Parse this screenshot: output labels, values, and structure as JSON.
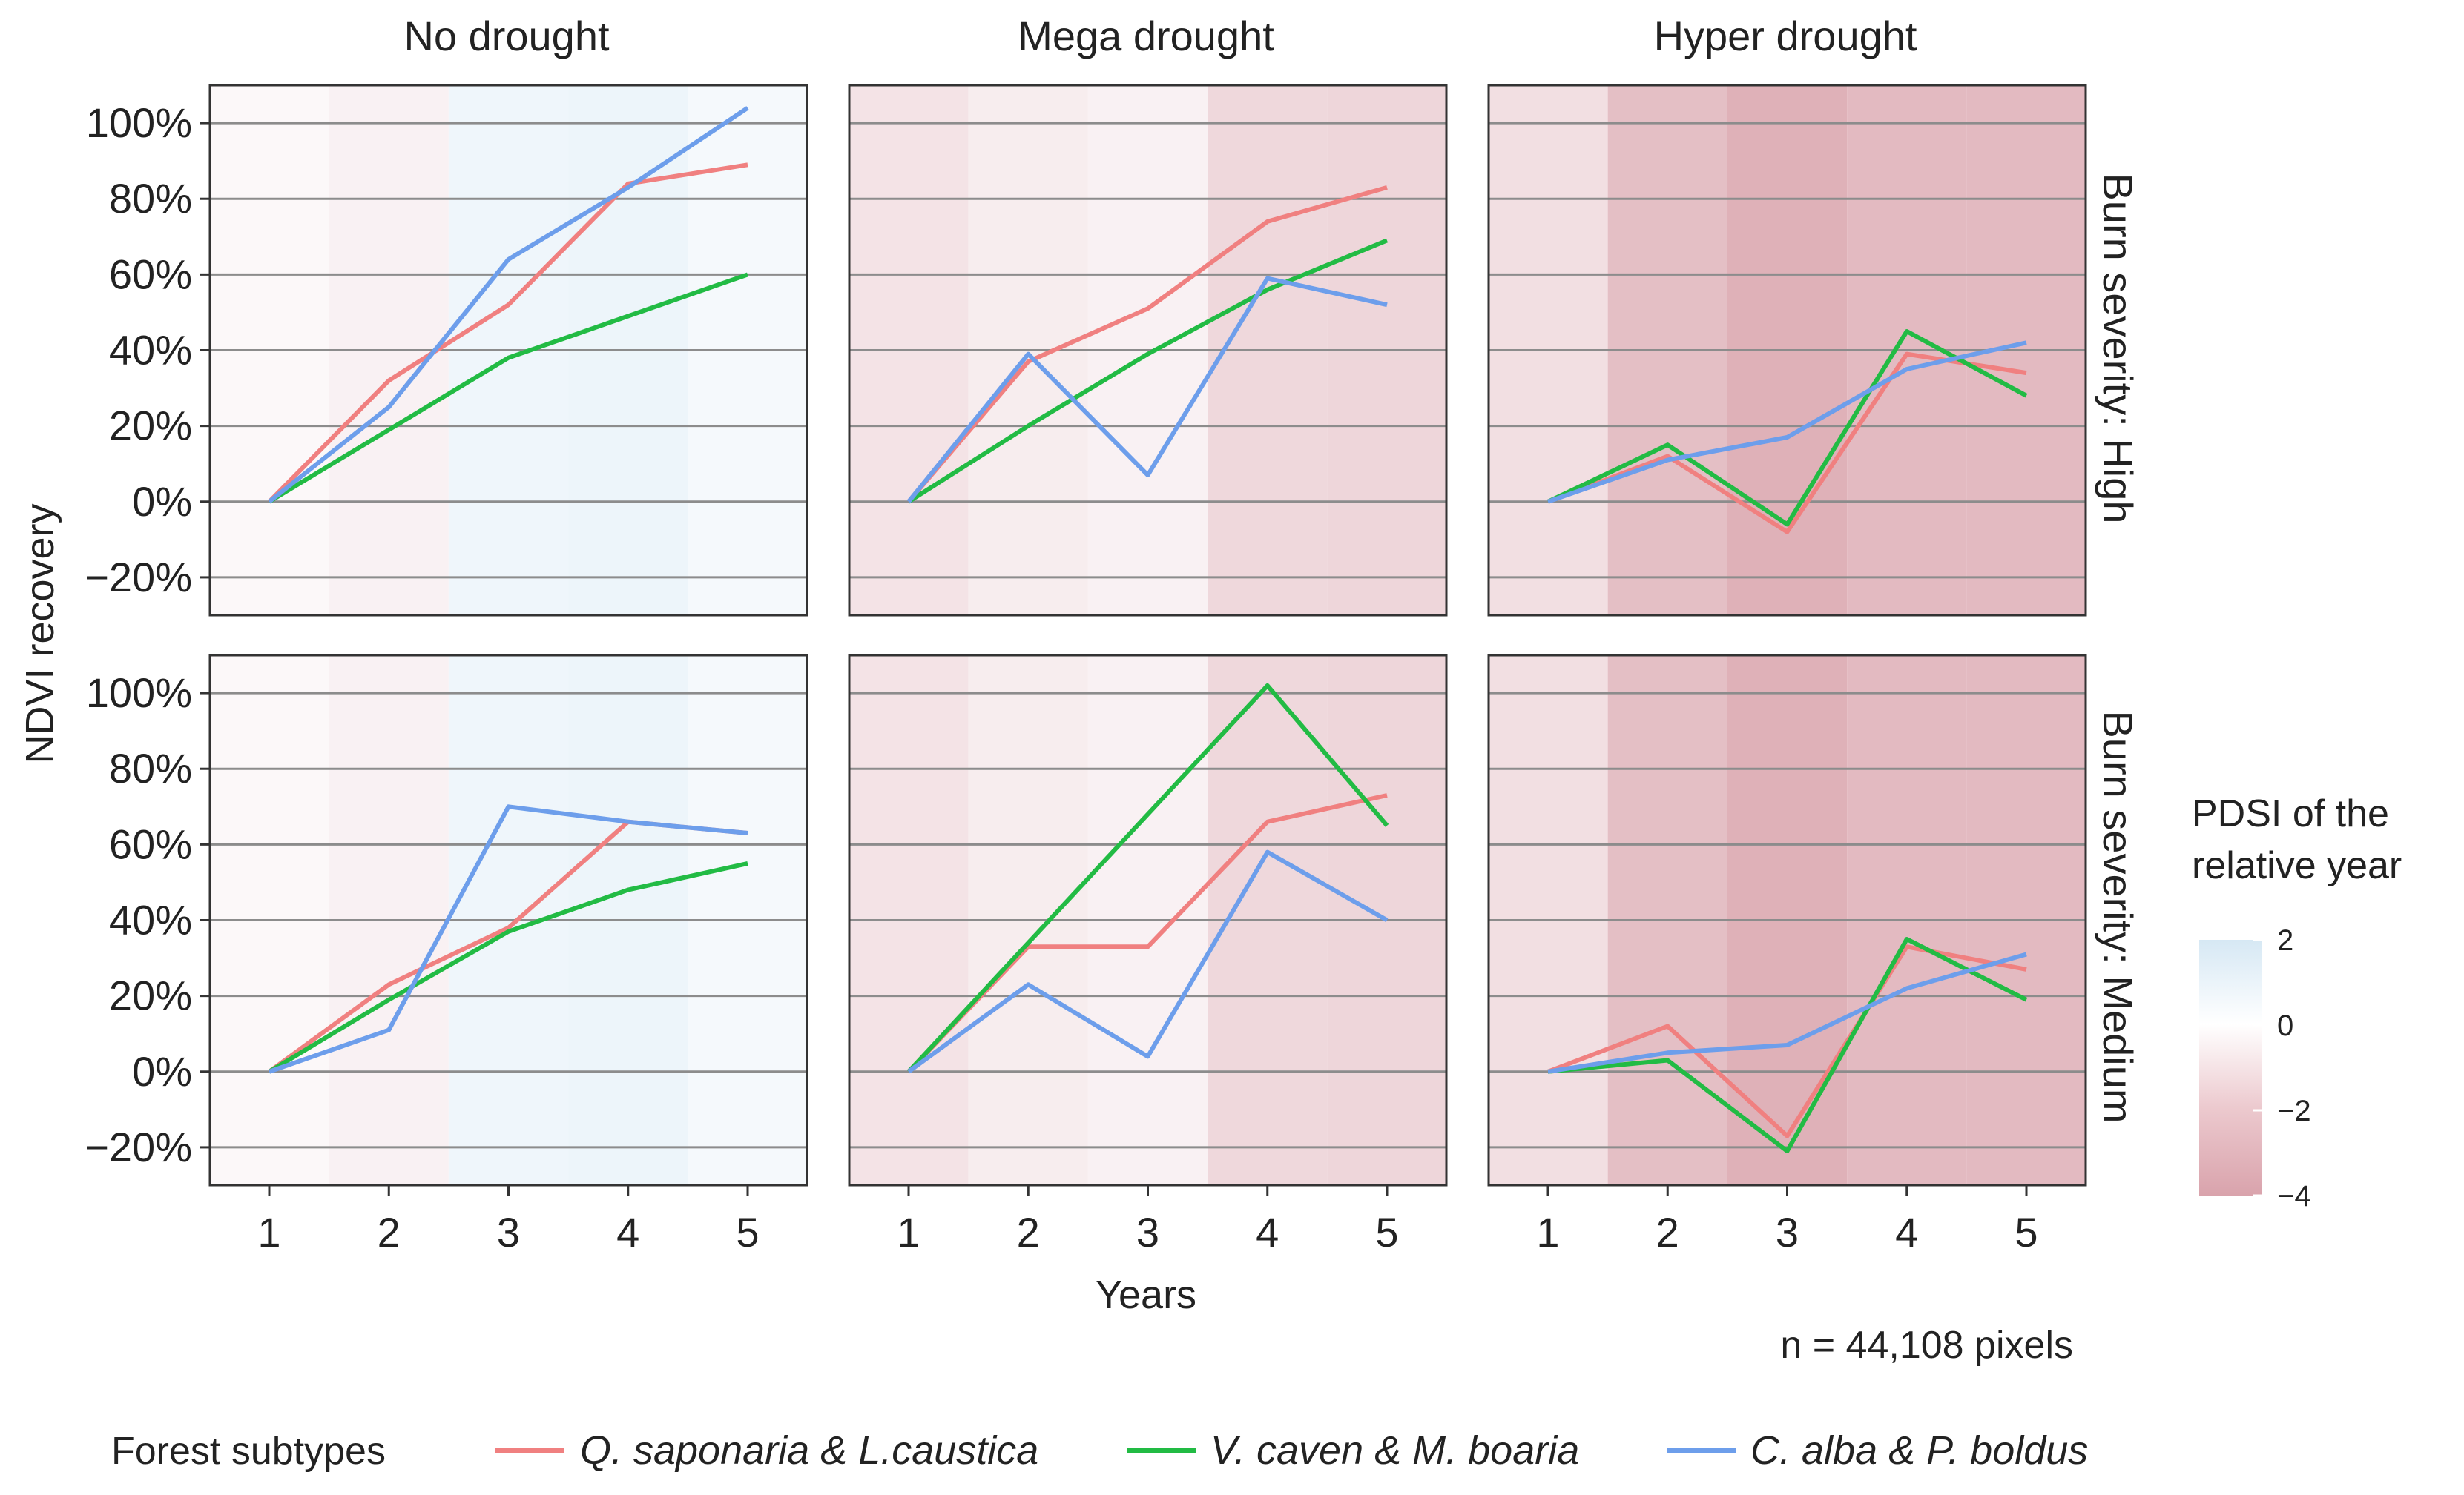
{
  "chart_data": {
    "type": "line",
    "facet_columns": [
      "No drought",
      "Mega drought",
      "Hyper drought"
    ],
    "facet_rows": [
      "Burn severity: High",
      "Burn severity: Medium"
    ],
    "xlabel": "Years",
    "ylabel": "NDVI recovery",
    "x": [
      1,
      2,
      3,
      4,
      5
    ],
    "x_tick_labels": [
      "1",
      "2",
      "3",
      "4",
      "5"
    ],
    "ylim": [
      -0.3,
      1.1
    ],
    "y_ticks": [
      -0.2,
      0,
      0.2,
      0.4,
      0.6,
      0.8,
      1.0
    ],
    "y_tick_labels": [
      "−20%",
      "0%",
      "20%",
      "40%",
      "60%",
      "80%",
      "100%"
    ],
    "grid": "horizontal",
    "note": "n = 44,108 pixels",
    "legend": {
      "title": "Forest subtypes",
      "position": "bottom",
      "entries": [
        {
          "name": "Q. saponaria & L.caustica",
          "color": "#f08080"
        },
        {
          "name": "V. caven & M. boaria",
          "color": "#22bb44"
        },
        {
          "name": "C. alba & P. boldus",
          "color": "#6d9eeb"
        }
      ]
    },
    "colorbar": {
      "title_line1": "PDSI of the",
      "title_line2": "relative year",
      "position": "right",
      "range": [
        -4,
        2
      ],
      "ticks": [
        2,
        0,
        -2,
        -4
      ],
      "tick_labels": [
        "2",
        "0",
        "−2",
        "−4"
      ],
      "low_color": "#d9a3ac",
      "mid_color": "#ffffff",
      "high_color": "#d6e8f4"
    },
    "pdsi_by_year": [
      [
        -0.3,
        -0.6,
        0.8,
        0.9,
        0.5
      ],
      [
        -1.2,
        -0.8,
        -0.6,
        -1.7,
        -1.8
      ],
      [
        -1.4,
        -2.8,
        -3.4,
        -3.0,
        -3.0
      ]
    ],
    "panels": [
      {
        "row": 0,
        "col": 0,
        "series": [
          {
            "name": "Q. saponaria & L.caustica",
            "values": [
              0.0,
              0.32,
              0.52,
              0.84,
              0.89
            ]
          },
          {
            "name": "V. caven & M. boaria",
            "values": [
              0.0,
              0.19,
              0.38,
              0.49,
              0.6
            ]
          },
          {
            "name": "C. alba & P. boldus",
            "values": [
              0.0,
              0.25,
              0.64,
              0.83,
              1.04
            ]
          }
        ]
      },
      {
        "row": 0,
        "col": 1,
        "series": [
          {
            "name": "Q. saponaria & L.caustica",
            "values": [
              0.0,
              0.37,
              0.51,
              0.74,
              0.83
            ]
          },
          {
            "name": "V. caven & M. boaria",
            "values": [
              0.0,
              0.2,
              0.39,
              0.56,
              0.69
            ]
          },
          {
            "name": "C. alba & P. boldus",
            "values": [
              0.0,
              0.39,
              0.07,
              0.59,
              0.52
            ]
          }
        ]
      },
      {
        "row": 0,
        "col": 2,
        "series": [
          {
            "name": "Q. saponaria & L.caustica",
            "values": [
              0.0,
              0.12,
              -0.08,
              0.39,
              0.34
            ]
          },
          {
            "name": "V. caven & M. boaria",
            "values": [
              0.0,
              0.15,
              -0.06,
              0.45,
              0.28
            ]
          },
          {
            "name": "C. alba & P. boldus",
            "values": [
              0.0,
              0.11,
              0.17,
              0.35,
              0.42
            ]
          }
        ]
      },
      {
        "row": 1,
        "col": 0,
        "series": [
          {
            "name": "Q. saponaria & L.caustica",
            "values": [
              0.0,
              0.23,
              0.38,
              0.66,
              0.63
            ]
          },
          {
            "name": "V. caven & M. boaria",
            "values": [
              0.0,
              0.19,
              0.37,
              0.48,
              0.55
            ]
          },
          {
            "name": "C. alba & P. boldus",
            "values": [
              0.0,
              0.11,
              0.7,
              0.66,
              0.63
            ]
          }
        ]
      },
      {
        "row": 1,
        "col": 1,
        "series": [
          {
            "name": "Q. saponaria & L.caustica",
            "values": [
              0.0,
              0.33,
              0.33,
              0.66,
              0.73
            ]
          },
          {
            "name": "V. caven & M. boaria",
            "values": [
              0.0,
              0.34,
              0.68,
              1.02,
              0.65
            ]
          },
          {
            "name": "C. alba & P. boldus",
            "values": [
              0.0,
              0.23,
              0.04,
              0.58,
              0.4
            ]
          }
        ]
      },
      {
        "row": 1,
        "col": 2,
        "series": [
          {
            "name": "Q. saponaria & L.caustica",
            "values": [
              0.0,
              0.12,
              -0.17,
              0.33,
              0.27
            ]
          },
          {
            "name": "V. caven & M. boaria",
            "values": [
              0.0,
              0.03,
              -0.21,
              0.35,
              0.19
            ]
          },
          {
            "name": "C. alba & P. boldus",
            "values": [
              0.0,
              0.05,
              0.07,
              0.22,
              0.31
            ]
          }
        ]
      }
    ]
  }
}
